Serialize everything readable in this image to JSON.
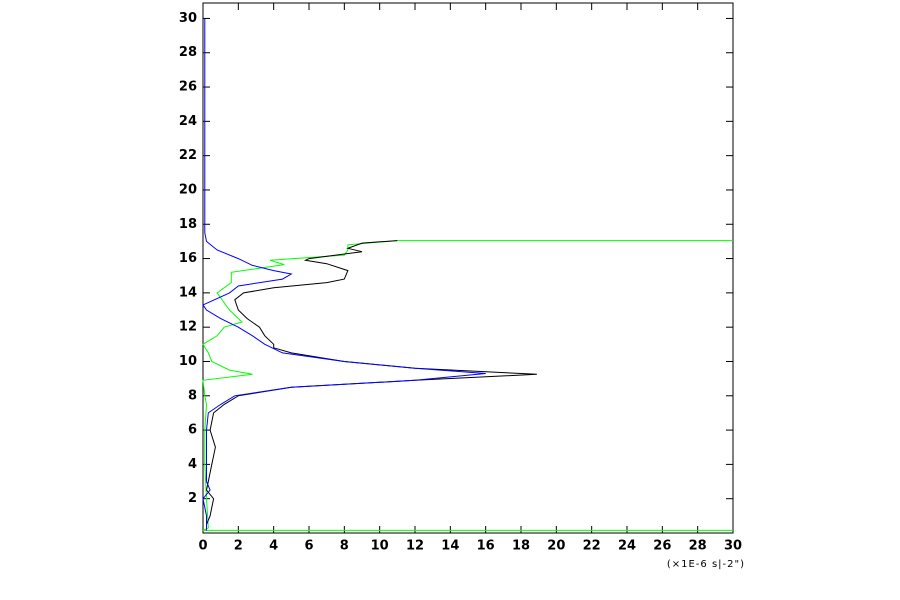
{
  "chart_data": {
    "type": "line",
    "orientation": "vertical",
    "annotation": "(×1E-6 s|-2\")",
    "xlim": [
      0,
      30
    ],
    "ylim": [
      0,
      30.9
    ],
    "xticks": [
      0,
      2,
      4,
      6,
      8,
      10,
      12,
      14,
      16,
      18,
      20,
      22,
      24,
      26,
      28,
      30
    ],
    "yticks": [
      2,
      4,
      6,
      8,
      10,
      12,
      14,
      16,
      18,
      20,
      22,
      24,
      26,
      28,
      30
    ],
    "series": [
      {
        "color": "#00ff00",
        "y": [
          0.15,
          0.15,
          0.3,
          2,
          4,
          6,
          7.5,
          8,
          8.9,
          9.25,
          9.5,
          10,
          10.5,
          11,
          11.5,
          12,
          12.3,
          13,
          14,
          14.6,
          15.2,
          15.65,
          15.9,
          16.2,
          16.5,
          16.8,
          17.05,
          17.05
        ],
        "values": [
          30,
          0,
          0.3,
          0.2,
          0.1,
          0.1,
          0.2,
          0.1,
          0,
          2.8,
          1.5,
          0.5,
          0.3,
          0,
          0.8,
          1.2,
          2.2,
          1.5,
          0.8,
          1.6,
          1.6,
          4.6,
          3.8,
          8,
          8.2,
          8.2,
          11,
          30
        ]
      },
      {
        "color": "#000000",
        "y": [
          0.15,
          0.5,
          1,
          2,
          2.5,
          3,
          4,
          5,
          6,
          7,
          7.5,
          8,
          8.5,
          8.9,
          9.25,
          9.6,
          10,
          10.5,
          10.8,
          11,
          11.5,
          12,
          12.5,
          13,
          13.6,
          14,
          14.3,
          14.6,
          14.8,
          15.3,
          15.7,
          15.9,
          16,
          16.4,
          16.6,
          16.9,
          17.05
        ],
        "values": [
          0.2,
          0.2,
          0.4,
          0.6,
          0.2,
          0.3,
          0.5,
          0.7,
          0.4,
          0.6,
          1.2,
          2,
          5,
          12,
          18.9,
          12,
          8,
          5,
          4,
          4,
          3.5,
          3.2,
          2.5,
          2,
          1.8,
          2.3,
          4,
          7,
          8,
          8.2,
          7,
          5.8,
          6,
          9,
          8.2,
          9,
          11
        ]
      },
      {
        "color": "#0000ff",
        "y": [
          0.15,
          1,
          2,
          2.5,
          3,
          4,
          5,
          6,
          7,
          7.5,
          8,
          8.5,
          8.9,
          9.3,
          9.6,
          10,
          10.5,
          11,
          11.5,
          12,
          12.5,
          13,
          13.3,
          14,
          14.4,
          14.8,
          15.1,
          15.3,
          15.6,
          16,
          16.5,
          17,
          17.5,
          30
        ],
        "values": [
          0.2,
          0.2,
          0,
          0.4,
          0.2,
          0.2,
          0.2,
          0.2,
          0.3,
          1,
          1.8,
          5,
          12,
          16,
          12,
          8,
          4.5,
          3.5,
          2.8,
          2,
          1,
          0.2,
          0,
          1.5,
          2,
          4.5,
          5,
          4,
          2.8,
          2,
          0.8,
          0.2,
          0.1,
          0.1
        ]
      }
    ]
  }
}
